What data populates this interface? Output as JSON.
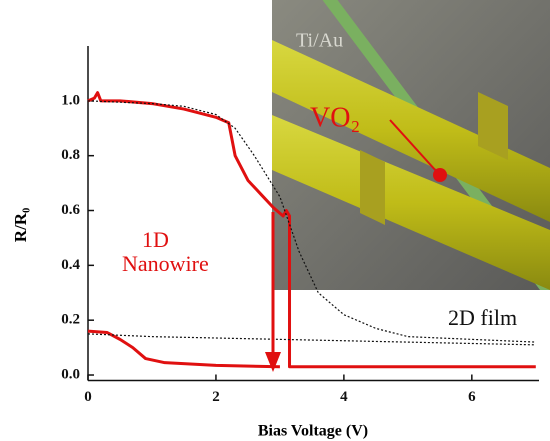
{
  "chart_data": {
    "type": "line",
    "xlabel": "Bias Voltage (V)",
    "ylabel": "R/R₀",
    "xlim": [
      0,
      7.05
    ],
    "ylim": [
      -0.02,
      1.2
    ],
    "xticks": [
      0,
      2,
      4,
      6
    ],
    "yticks": [
      {
        "value": 0,
        "label": "0.0"
      },
      0.2,
      0.4,
      0.6,
      0.8,
      {
        "value": 1,
        "label": "1.0"
      }
    ],
    "series": [
      {
        "color": "#e01010",
        "style": "solid",
        "x": [
          0,
          0.1,
          0.15,
          0.2,
          0.5,
          1.0,
          1.5,
          2.0,
          2.2,
          2.25,
          2.3,
          2.5,
          2.7,
          2.9,
          3.0,
          3.05,
          3.1,
          3.15,
          3.15,
          4,
          5,
          6,
          7
        ],
        "values": [
          1.0,
          1.01,
          1.03,
          1.0,
          1.0,
          0.99,
          0.97,
          0.94,
          0.92,
          0.86,
          0.8,
          0.71,
          0.66,
          0.61,
          0.59,
          0.58,
          0.6,
          0.58,
          0.03,
          0.03,
          0.03,
          0.03,
          0.03
        ]
      },
      {
        "color": "#e01010",
        "style": "solid",
        "x": [
          0,
          0.3,
          0.5,
          0.7,
          0.9,
          1.2,
          1.6,
          2.0,
          3.0
        ],
        "values": [
          0.16,
          0.155,
          0.13,
          0.1,
          0.06,
          0.045,
          0.04,
          0.035,
          0.03
        ]
      },
      {
        "color": "#111111",
        "style": "dotted",
        "x": [
          0,
          1.0,
          1.5,
          2.0,
          2.3,
          2.6,
          3.0,
          3.3,
          3.6,
          4.0,
          4.5,
          5.0,
          6.0,
          7.0
        ],
        "values": [
          1.0,
          0.99,
          0.98,
          0.95,
          0.9,
          0.8,
          0.65,
          0.45,
          0.3,
          0.22,
          0.17,
          0.14,
          0.13,
          0.12
        ]
      },
      {
        "color": "#111111",
        "style": "dotted",
        "x": [
          0,
          1.0,
          3.0,
          5.0,
          7.0
        ],
        "values": [
          0.15,
          0.14,
          0.13,
          0.12,
          0.11
        ]
      }
    ],
    "annotations": [
      "1D",
      "Nanowire",
      "2D film"
    ],
    "inset_labels": [
      "Ti/Au",
      "VO₂"
    ]
  }
}
